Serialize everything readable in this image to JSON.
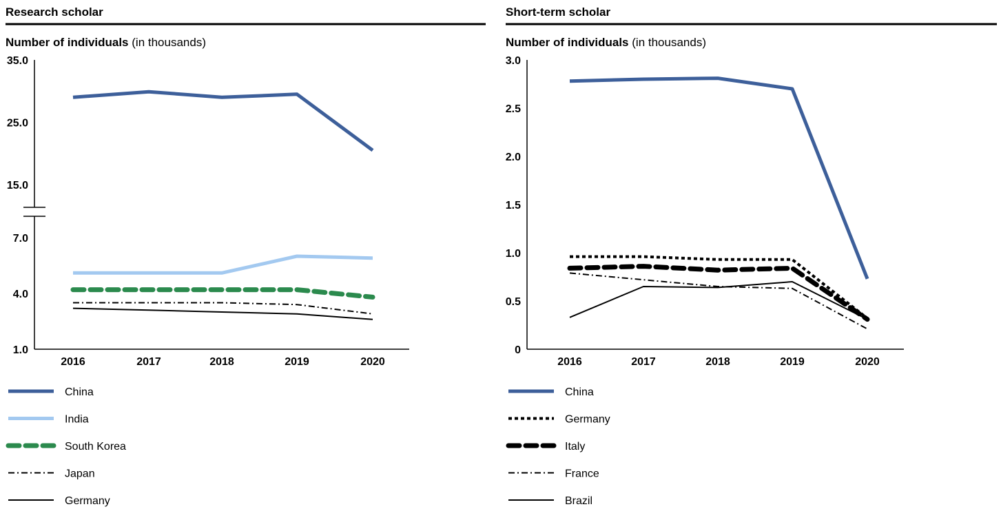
{
  "chart_data": [
    {
      "type": "line",
      "title": "Research scholar",
      "ylabel_bold": "Number of individuals",
      "ylabel_unit": "(in thousands)",
      "categories": [
        "2016",
        "2017",
        "2018",
        "2019",
        "2020"
      ],
      "y_axis": {
        "broken": true,
        "upper_segment": [
          15.0,
          35.0
        ],
        "lower_segment": [
          1.0,
          7.0
        ],
        "ticks": [
          "1.0",
          "4.0",
          "7.0",
          "15.0",
          "25.0",
          "35.0"
        ]
      },
      "grid": false,
      "legend_position": "bottom",
      "series": [
        {
          "name": "China",
          "values": [
            29.0,
            29.9,
            29.0,
            29.5,
            20.5
          ],
          "color": "#3d5f9a",
          "style": "solid-thick"
        },
        {
          "name": "India",
          "values": [
            5.1,
            5.1,
            5.1,
            6.0,
            5.9
          ],
          "color": "#a3c9f0",
          "style": "solid-thick"
        },
        {
          "name": "South Korea",
          "values": [
            4.2,
            4.2,
            4.2,
            4.2,
            3.8
          ],
          "color": "#2b8a4d",
          "style": "dashed-thick"
        },
        {
          "name": "Japan",
          "values": [
            3.5,
            3.5,
            3.5,
            3.4,
            2.9
          ],
          "color": "#000000",
          "style": "dashdot"
        },
        {
          "name": "Germany",
          "values": [
            3.2,
            3.1,
            3.0,
            2.9,
            2.6
          ],
          "color": "#000000",
          "style": "solid-thin"
        }
      ]
    },
    {
      "type": "line",
      "title": "Short-term scholar",
      "ylabel_bold": "Number of individuals",
      "ylabel_unit": "(in thousands)",
      "categories": [
        "2016",
        "2017",
        "2018",
        "2019",
        "2020"
      ],
      "y_axis": {
        "ylim": [
          0,
          3.0
        ],
        "ticks": [
          "0",
          "0.5",
          "1.0",
          "1.5",
          "2.0",
          "2.5",
          "3.0"
        ]
      },
      "grid": false,
      "legend_position": "bottom",
      "series": [
        {
          "name": "China",
          "values": [
            2.78,
            2.8,
            2.81,
            2.7,
            0.73
          ],
          "color": "#3d5f9a",
          "style": "solid-thick"
        },
        {
          "name": "Germany",
          "values": [
            0.96,
            0.96,
            0.93,
            0.93,
            0.32
          ],
          "color": "#000000",
          "style": "dotted"
        },
        {
          "name": "Italy",
          "values": [
            0.84,
            0.86,
            0.82,
            0.84,
            0.31
          ],
          "color": "#000000",
          "style": "dashed-thick"
        },
        {
          "name": "France",
          "values": [
            0.79,
            0.72,
            0.65,
            0.63,
            0.21
          ],
          "color": "#000000",
          "style": "dashdot"
        },
        {
          "name": "Brazil",
          "values": [
            0.33,
            0.65,
            0.64,
            0.7,
            0.31
          ],
          "color": "#000000",
          "style": "solid-thin"
        }
      ]
    }
  ]
}
